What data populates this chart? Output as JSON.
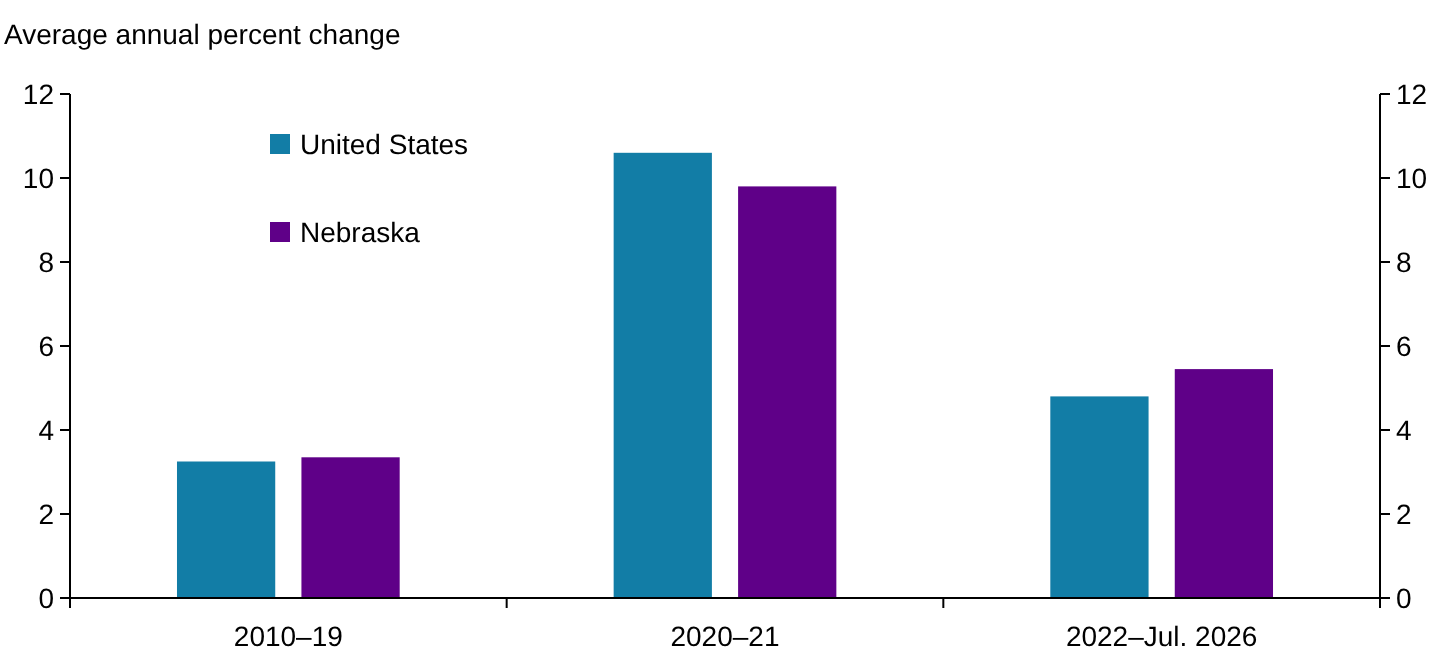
{
  "chart_data": {
    "type": "bar",
    "ylabel": "Average annual percent change",
    "categories": [
      "2010–19",
      "2020–21",
      "2022–Jul. 2026"
    ],
    "series": [
      {
        "name": "United States",
        "color": "#127da6",
        "values": [
          3.25,
          10.6,
          4.8
        ]
      },
      {
        "name": "Nebraska",
        "color": "#5f0088",
        "values": [
          3.35,
          9.8,
          5.45
        ]
      }
    ],
    "ylim": [
      0,
      12
    ],
    "yticks": [
      0,
      2,
      4,
      6,
      8,
      10,
      12
    ],
    "y2lim": [
      0,
      12
    ],
    "y2ticks": [
      0,
      2,
      4,
      6,
      8,
      10,
      12
    ],
    "legend": "top left",
    "grid": false
  }
}
